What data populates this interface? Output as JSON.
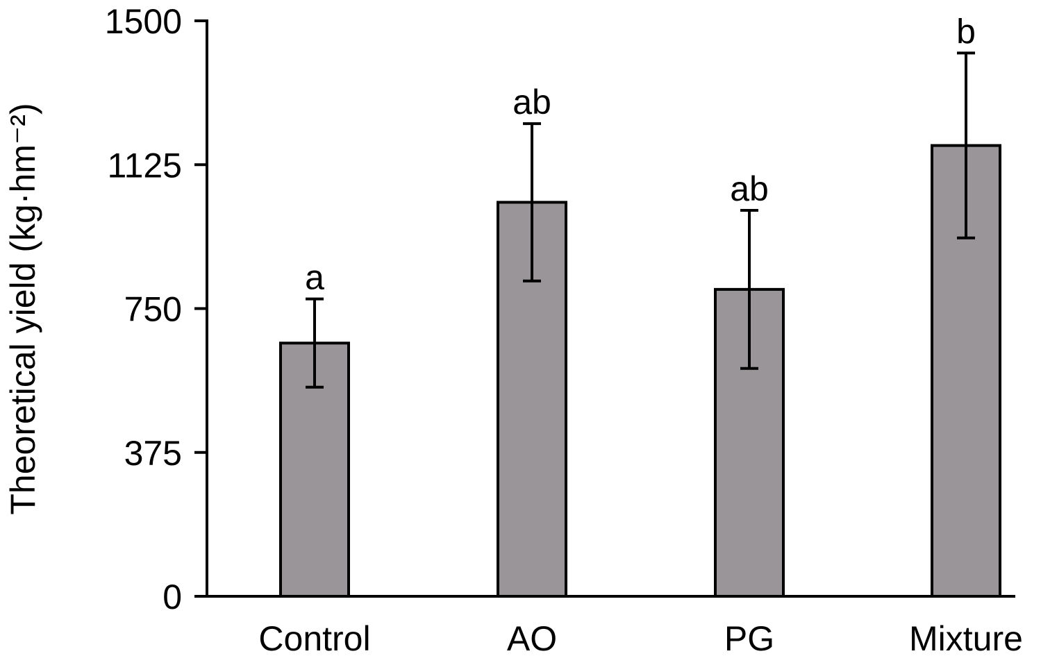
{
  "chart_data": {
    "type": "bar",
    "title": "",
    "xlabel": "",
    "ylabel": "Theoretical yield (kg·hm⁻²)",
    "ylim": [
      0,
      1500
    ],
    "yticks": [
      0,
      375,
      750,
      1125,
      1500
    ],
    "ytick_labels": [
      "0",
      "375",
      "750",
      "1125",
      "1500"
    ],
    "categories": [
      "Control",
      "AO",
      "PG",
      "Mixture"
    ],
    "values": [
      660,
      1027,
      800,
      1175
    ],
    "errors": [
      115,
      205,
      206,
      241
    ],
    "significance_labels": [
      "a",
      "ab",
      "ab",
      "b"
    ],
    "bar_color": "#9a9599",
    "grid": false,
    "legend": "none"
  }
}
